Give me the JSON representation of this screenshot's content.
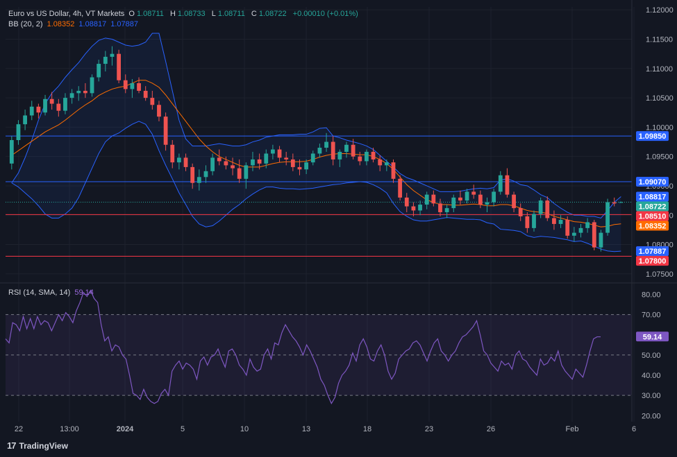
{
  "header": {
    "symbol_title": "Euro vs US Dollar, 4h, VT Markets",
    "ohlc": [
      {
        "label": "O",
        "value": "1.08711"
      },
      {
        "label": "H",
        "value": "1.08733"
      },
      {
        "label": "L",
        "value": "1.08711"
      },
      {
        "label": "C",
        "value": "1.08722"
      }
    ],
    "change": "+0.00010 (+0.01%)"
  },
  "bb_legend": {
    "label": "BB (20, 2)",
    "basis": "1.08352",
    "upper": "1.08817",
    "lower": "1.07887"
  },
  "rsi_legend": {
    "label": "RSI (14, SMA, 14)",
    "value": "59.14"
  },
  "brand": {
    "name": "TradingView"
  },
  "colors": {
    "background": "#131722",
    "up": "#26a69a",
    "down": "#ef5350",
    "bb_band": "#2962ff",
    "bb_basis": "#ff6d00",
    "rsi": "#7e57c2",
    "resistance_blue": "#2962ff",
    "support_red": "#f23645"
  },
  "chart_data": [
    {
      "type": "candlestick",
      "title": "Euro vs US Dollar, 4h, VT Markets",
      "y_range": [
        1.0738,
        1.1205
      ],
      "y_ticks": [
        "1.07500",
        "1.08000",
        "1.08500",
        "1.09000",
        "1.09500",
        "1.10000",
        "1.10500",
        "1.11000",
        "1.11500",
        "1.12000"
      ],
      "x_ticks": [
        "22",
        "13:00",
        "2024",
        "5",
        "10",
        "13",
        "18",
        "23",
        "26",
        "Feb",
        "6"
      ],
      "candles": [
        [
          1.0938,
          1.0985,
          1.0928,
          1.0978
        ],
        [
          1.0978,
          1.1012,
          1.097,
          1.1005
        ],
        [
          1.1005,
          1.103,
          1.0995,
          1.102
        ],
        [
          1.102,
          1.1045,
          1.1012,
          1.1035
        ],
        [
          1.1035,
          1.104,
          1.1015,
          1.1025
        ],
        [
          1.1025,
          1.1055,
          1.102,
          1.1048
        ],
        [
          1.1048,
          1.106,
          1.103,
          1.104
        ],
        [
          1.104,
          1.1048,
          1.1018,
          1.1028
        ],
        [
          1.1028,
          1.1058,
          1.1022,
          1.105
        ],
        [
          1.105,
          1.1065,
          1.104,
          1.1058
        ],
        [
          1.1058,
          1.107,
          1.1045,
          1.1062
        ],
        [
          1.1062,
          1.1075,
          1.105,
          1.1058
        ],
        [
          1.1058,
          1.109,
          1.1052,
          1.1085
        ],
        [
          1.1085,
          1.1115,
          1.1078,
          1.1108
        ],
        [
          1.1108,
          1.113,
          1.1095,
          1.112
        ],
        [
          1.112,
          1.1138,
          1.1105,
          1.1125
        ],
        [
          1.1125,
          1.1132,
          1.1075,
          1.108
        ],
        [
          1.108,
          1.109,
          1.1058,
          1.1065
        ],
        [
          1.1065,
          1.1082,
          1.105,
          1.1075
        ],
        [
          1.1075,
          1.1085,
          1.1058,
          1.1062
        ],
        [
          1.1062,
          1.107,
          1.1045,
          1.105
        ],
        [
          1.105,
          1.1062,
          1.103,
          1.1038
        ],
        [
          1.1038,
          1.1045,
          1.101,
          1.1018
        ],
        [
          1.1018,
          1.1025,
          1.096,
          1.097
        ],
        [
          1.097,
          1.0978,
          1.093,
          1.094
        ],
        [
          1.094,
          1.0955,
          1.0928,
          1.0948
        ],
        [
          1.0948,
          1.0955,
          1.0925,
          1.0932
        ],
        [
          1.0932,
          1.0938,
          1.0895,
          1.0905
        ],
        [
          1.0905,
          1.0928,
          1.0892,
          1.0915
        ],
        [
          1.0915,
          1.0935,
          1.0905,
          1.0925
        ],
        [
          1.0925,
          1.0955,
          1.0918,
          1.0948
        ],
        [
          1.0948,
          1.0962,
          1.0935,
          1.0942
        ],
        [
          1.0942,
          1.095,
          1.0928,
          1.0935
        ],
        [
          1.0935,
          1.0948,
          1.0918,
          1.093
        ],
        [
          1.093,
          1.0945,
          1.0905,
          1.0912
        ],
        [
          1.0912,
          1.094,
          1.0895,
          1.0935
        ],
        [
          1.0935,
          1.0958,
          1.0925,
          1.0945
        ],
        [
          1.0945,
          1.0955,
          1.0928,
          1.0938
        ],
        [
          1.0938,
          1.0962,
          1.093,
          1.0955
        ],
        [
          1.0955,
          1.097,
          1.0945,
          1.0962
        ],
        [
          1.0962,
          1.0968,
          1.094,
          1.0948
        ],
        [
          1.0948,
          1.0958,
          1.0935,
          1.0945
        ],
        [
          1.0945,
          1.0955,
          1.0925,
          1.0932
        ],
        [
          1.0932,
          1.0945,
          1.0918,
          1.0928
        ],
        [
          1.0928,
          1.0945,
          1.092,
          1.094
        ],
        [
          1.094,
          1.096,
          1.0935,
          1.0955
        ],
        [
          1.0955,
          1.0972,
          1.0948,
          1.0965
        ],
        [
          1.0965,
          1.099,
          1.0958,
          1.0975
        ],
        [
          1.0975,
          1.0985,
          1.0935,
          1.0945
        ],
        [
          1.0945,
          1.0962,
          1.0932,
          1.0958
        ],
        [
          1.0958,
          1.0975,
          1.0948,
          1.097
        ],
        [
          1.097,
          1.098,
          1.0945,
          1.095
        ],
        [
          1.095,
          1.0958,
          1.0935,
          1.0942
        ],
        [
          1.0942,
          1.0962,
          1.0935,
          1.0958
        ],
        [
          1.0958,
          1.0965,
          1.094,
          1.0945
        ],
        [
          1.0945,
          1.0952,
          1.0925,
          1.0935
        ],
        [
          1.0935,
          1.0945,
          1.0925,
          1.094
        ],
        [
          1.094,
          1.0945,
          1.0905,
          1.0912
        ],
        [
          1.0912,
          1.0918,
          1.0875,
          1.088
        ],
        [
          1.088,
          1.0888,
          1.0855,
          1.0865
        ],
        [
          1.0865,
          1.0872,
          1.0848,
          1.0858
        ],
        [
          1.0858,
          1.0875,
          1.085,
          1.0868
        ],
        [
          1.0868,
          1.089,
          1.086,
          1.0885
        ],
        [
          1.0885,
          1.0892,
          1.0865,
          1.087
        ],
        [
          1.087,
          1.0878,
          1.0848,
          1.0855
        ],
        [
          1.0855,
          1.0868,
          1.0845,
          1.0862
        ],
        [
          1.0862,
          1.0885,
          1.0855,
          1.088
        ],
        [
          1.088,
          1.0892,
          1.0868,
          1.0875
        ],
        [
          1.0875,
          1.0895,
          1.087,
          1.089
        ],
        [
          1.089,
          1.0902,
          1.0878,
          1.0885
        ],
        [
          1.0885,
          1.0892,
          1.0862,
          1.0868
        ],
        [
          1.0868,
          1.088,
          1.0855,
          1.0872
        ],
        [
          1.0872,
          1.0895,
          1.0865,
          1.089
        ],
        [
          1.089,
          1.0925,
          1.0885,
          1.0918
        ],
        [
          1.0918,
          1.093,
          1.088,
          1.0885
        ],
        [
          1.0885,
          1.089,
          1.0855,
          1.0862
        ],
        [
          1.0862,
          1.087,
          1.084,
          1.0848
        ],
        [
          1.0848,
          1.0855,
          1.082,
          1.0828
        ],
        [
          1.0828,
          1.0858,
          1.0822,
          1.0852
        ],
        [
          1.0852,
          1.088,
          1.0845,
          1.0875
        ],
        [
          1.0875,
          1.0882,
          1.084,
          1.0845
        ],
        [
          1.0845,
          1.0858,
          1.0825,
          1.0835
        ],
        [
          1.0835,
          1.085,
          1.0828,
          1.0842
        ],
        [
          1.0842,
          1.0848,
          1.081,
          1.0815
        ],
        [
          1.0815,
          1.083,
          1.0805,
          1.082
        ],
        [
          1.082,
          1.0835,
          1.0812,
          1.0828
        ],
        [
          1.0828,
          1.0845,
          1.082,
          1.0838
        ],
        [
          1.0838,
          1.0842,
          1.079,
          1.0795
        ],
        [
          1.0795,
          1.0825,
          1.0788,
          1.082
        ],
        [
          1.082,
          1.0878,
          1.0815,
          1.0872
        ],
        [
          1.0872,
          1.088,
          1.0865,
          1.087
        ],
        [
          1.0871,
          1.08733,
          1.08711,
          1.08722
        ]
      ],
      "bb_upper": [
        1.0905,
        1.0922,
        1.0948,
        1.0978,
        1.1012,
        1.104,
        1.1058,
        1.107,
        1.1085,
        1.1098,
        1.111,
        1.1125,
        1.1138,
        1.1148,
        1.1152,
        1.115,
        1.1145,
        1.114,
        1.1138,
        1.114,
        1.1145,
        1.116,
        1.116,
        1.1112,
        1.1062,
        1.1012,
        1.098,
        1.0968,
        1.0968,
        1.0968,
        1.097,
        1.0972,
        1.097,
        1.0968,
        1.0968,
        1.097,
        1.0975,
        1.0978,
        1.0983,
        1.0985,
        1.0987,
        1.0987,
        1.0987,
        1.0988,
        1.0988,
        1.0992,
        1.0998,
        1.0999,
        1.0985,
        1.0982,
        1.0978,
        1.0975,
        1.0972,
        1.0968,
        1.0962,
        1.0952,
        1.0942,
        1.0932,
        1.0921,
        1.0914,
        1.091,
        1.0905,
        1.09,
        1.0895,
        1.089,
        1.089,
        1.089,
        1.0891,
        1.0893,
        1.0895,
        1.0896,
        1.0895,
        1.0897,
        1.091,
        1.0912,
        1.0908,
        1.0902,
        1.09,
        1.0893,
        1.0885,
        1.088,
        1.087,
        1.0862,
        1.0855,
        1.085,
        1.085,
        1.0848,
        1.0848,
        1.0845,
        1.0858,
        1.0872,
        1.08817
      ],
      "bb_basis": [
        1.0952,
        1.096,
        1.0968,
        1.0976,
        1.0984,
        1.0992,
        1.0998,
        1.1004,
        1.1012,
        1.1021,
        1.103,
        1.1038,
        1.1045,
        1.1054,
        1.106,
        1.1065,
        1.1068,
        1.107,
        1.1075,
        1.108,
        1.108,
        1.1075,
        1.1068,
        1.1055,
        1.104,
        1.1025,
        1.101,
        1.0995,
        1.098,
        1.0968,
        1.0958,
        1.095,
        1.0945,
        1.094,
        1.0935,
        1.0932,
        1.0932,
        1.0932,
        1.0935,
        1.0938,
        1.094,
        1.0941,
        1.0941,
        1.0941,
        1.0942,
        1.0945,
        1.0949,
        1.0952,
        1.0954,
        1.0955,
        1.0955,
        1.0954,
        1.0953,
        1.0953,
        1.095,
        1.0945,
        1.0938,
        1.0928,
        1.0915,
        1.0902,
        1.0892,
        1.0884,
        1.0876,
        1.0872,
        1.0868,
        1.0868,
        1.0867,
        1.0867,
        1.0868,
        1.0869,
        1.0868,
        1.0866,
        1.0866,
        1.0868,
        1.0868,
        1.0866,
        1.0862,
        1.0858,
        1.0856,
        1.0855,
        1.0853,
        1.0848,
        1.0845,
        1.0842,
        1.0839,
        1.0838,
        1.0836,
        1.0833,
        1.083,
        1.0831,
        1.0834,
        1.08352
      ],
      "bb_lower": [
        1.0905,
        1.0898,
        1.0888,
        1.0878,
        1.0866,
        1.0852,
        1.0845,
        1.0845,
        1.0852,
        1.0862,
        1.088,
        1.0905,
        1.093,
        1.0955,
        1.0975,
        1.0985,
        1.099,
        1.0998,
        1.1005,
        1.101,
        1.1005,
        1.0988,
        1.096,
        1.0935,
        1.0912,
        1.0888,
        1.0868,
        1.0848,
        1.0835,
        1.083,
        1.0832,
        1.084,
        1.085,
        1.086,
        1.0868,
        1.0878,
        1.0886,
        1.0893,
        1.0898,
        1.0898,
        1.0896,
        1.0895,
        1.0895,
        1.0894,
        1.0895,
        1.0896,
        1.0898,
        1.09,
        1.0902,
        1.0903,
        1.0905,
        1.0906,
        1.0907,
        1.0906,
        1.0902,
        1.0896,
        1.0888,
        1.087,
        1.0856,
        1.0848,
        1.0842,
        1.084,
        1.084,
        1.0842,
        1.0844,
        1.0846,
        1.0845,
        1.0844,
        1.0843,
        1.0843,
        1.0842,
        1.0837,
        1.0835,
        1.0826,
        1.0825,
        1.0824,
        1.0822,
        1.0815,
        1.0812,
        1.0814,
        1.0813,
        1.0812,
        1.081,
        1.0808,
        1.0805,
        1.0806,
        1.0802,
        1.0797,
        1.0792,
        1.0789,
        1.0788,
        1.07887
      ],
      "horizontal_levels": [
        {
          "value": 1.0985,
          "label": "1.09850",
          "color": "#2962ff"
        },
        {
          "value": 1.0907,
          "label": "1.09070",
          "color": "#2962ff"
        },
        {
          "value": 1.0851,
          "label": "1.08510",
          "color": "#f23645"
        },
        {
          "value": 1.078,
          "label": "1.07800",
          "color": "#f23645"
        }
      ],
      "price_tags": [
        {
          "value": 1.08817,
          "label": "1.08817",
          "color": "#2962ff"
        },
        {
          "value": 1.08722,
          "label": "1.08722",
          "color": "#26a69a"
        },
        {
          "value": 1.08352,
          "label": "1.08352",
          "color": "#ff6d00"
        },
        {
          "value": 1.07887,
          "label": "1.07887",
          "color": "#2962ff"
        }
      ]
    },
    {
      "type": "line",
      "title": "RSI (14, SMA, 14)",
      "y_range": [
        17,
        85
      ],
      "y_ticks": [
        "20.00",
        "30.00",
        "40.00",
        "50.00",
        "60.00",
        "70.00",
        "80.00"
      ],
      "levels": [
        70,
        50,
        30
      ],
      "series": [
        {
          "name": "RSI",
          "values": [
            58,
            56,
            66,
            65,
            62,
            69,
            63,
            68,
            63,
            69,
            65,
            67,
            66,
            62,
            66,
            70,
            67,
            71,
            69,
            66,
            72,
            76,
            81,
            79,
            82,
            78,
            76,
            65,
            57,
            59,
            52,
            55,
            54,
            50,
            48,
            40,
            31,
            30,
            28,
            33,
            29,
            27,
            26,
            27,
            31,
            33,
            30,
            42,
            45,
            47,
            43,
            46,
            45,
            43,
            38,
            47,
            49,
            45,
            49,
            50,
            53,
            48,
            44,
            52,
            53,
            50,
            45,
            43,
            40,
            48,
            44,
            42,
            43,
            50,
            53,
            48,
            56,
            55,
            61,
            65,
            62,
            59,
            57,
            54,
            50,
            55,
            52,
            48,
            44,
            38,
            35,
            30,
            26,
            29,
            36,
            40,
            42,
            45,
            51,
            47,
            55,
            58,
            54,
            48,
            47,
            52,
            55,
            50,
            42,
            38,
            41,
            48,
            50,
            52,
            53,
            56,
            57,
            55,
            51,
            47,
            52,
            56,
            58,
            52,
            50,
            47,
            50,
            52,
            56,
            59,
            60,
            62,
            64,
            67,
            60,
            52,
            50,
            46,
            44,
            42,
            47,
            45,
            46,
            43,
            50,
            52,
            48,
            47,
            44,
            42,
            40,
            48,
            45,
            46,
            49,
            47,
            52,
            45,
            42,
            40,
            38,
            43,
            41,
            39,
            45,
            52,
            58,
            59,
            59
          ]
        }
      ],
      "sma_value": 59.14
    }
  ]
}
